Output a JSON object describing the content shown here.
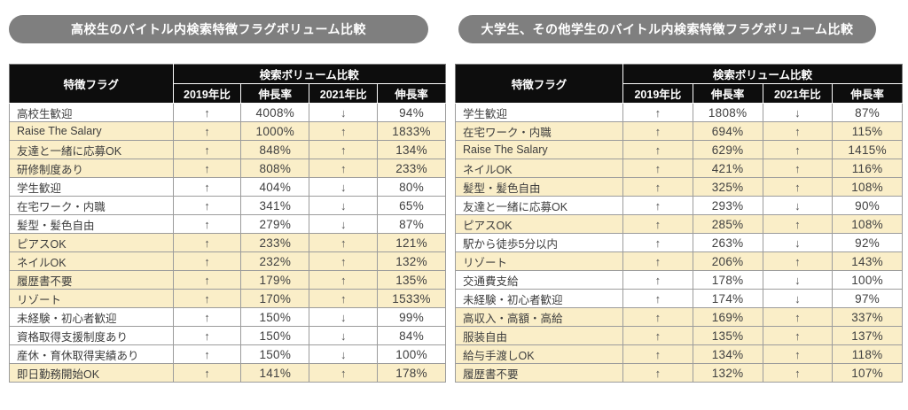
{
  "style": {
    "highlight_color": "#faeec8",
    "pill_color": "#7f7f7f",
    "header_bg": "#0d0d0d",
    "border_color": "#9c9c9c",
    "text_color": "#404040"
  },
  "chart_data": [
    {
      "type": "table",
      "title": "高校生のバイトル内検索特徴フラグボリューム比較",
      "flag_header": "特徴フラグ",
      "group_header": "検索ボリューム比較",
      "sub_headers": [
        "2019年比",
        "伸長率",
        "2021年比",
        "伸長率"
      ],
      "legend_note": "highlight = both comparisons increased",
      "rows": [
        {
          "flag": "高校生歓迎",
          "c2019_arrow": "↑",
          "c2019_growth": "4008%",
          "c2021_arrow": "↓",
          "c2021_growth": "94%",
          "highlight": false
        },
        {
          "flag": "Raise The Salary",
          "c2019_arrow": "↑",
          "c2019_growth": "1000%",
          "c2021_arrow": "↑",
          "c2021_growth": "1833%",
          "highlight": true
        },
        {
          "flag": "友達と一緒に応募OK",
          "c2019_arrow": "↑",
          "c2019_growth": "848%",
          "c2021_arrow": "↑",
          "c2021_growth": "134%",
          "highlight": true
        },
        {
          "flag": "研修制度あり",
          "c2019_arrow": "↑",
          "c2019_growth": "808%",
          "c2021_arrow": "↑",
          "c2021_growth": "233%",
          "highlight": true
        },
        {
          "flag": "学生歓迎",
          "c2019_arrow": "↑",
          "c2019_growth": "404%",
          "c2021_arrow": "↓",
          "c2021_growth": "80%",
          "highlight": false
        },
        {
          "flag": "在宅ワーク・内職",
          "c2019_arrow": "↑",
          "c2019_growth": "341%",
          "c2021_arrow": "↓",
          "c2021_growth": "65%",
          "highlight": false
        },
        {
          "flag": "髪型・髪色自由",
          "c2019_arrow": "↑",
          "c2019_growth": "279%",
          "c2021_arrow": "↓",
          "c2021_growth": "87%",
          "highlight": false
        },
        {
          "flag": "ピアスOK",
          "c2019_arrow": "↑",
          "c2019_growth": "233%",
          "c2021_arrow": "↑",
          "c2021_growth": "121%",
          "highlight": true
        },
        {
          "flag": "ネイルOK",
          "c2019_arrow": "↑",
          "c2019_growth": "232%",
          "c2021_arrow": "↑",
          "c2021_growth": "132%",
          "highlight": true
        },
        {
          "flag": "履歴書不要",
          "c2019_arrow": "↑",
          "c2019_growth": "179%",
          "c2021_arrow": "↑",
          "c2021_growth": "135%",
          "highlight": true
        },
        {
          "flag": "リゾート",
          "c2019_arrow": "↑",
          "c2019_growth": "170%",
          "c2021_arrow": "↑",
          "c2021_growth": "1533%",
          "highlight": true
        },
        {
          "flag": "未経験・初心者歓迎",
          "c2019_arrow": "↑",
          "c2019_growth": "150%",
          "c2021_arrow": "↓",
          "c2021_growth": "99%",
          "highlight": false
        },
        {
          "flag": "資格取得支援制度あり",
          "c2019_arrow": "↑",
          "c2019_growth": "150%",
          "c2021_arrow": "↓",
          "c2021_growth": "84%",
          "highlight": false
        },
        {
          "flag": "産休・育休取得実績あり",
          "c2019_arrow": "↑",
          "c2019_growth": "150%",
          "c2021_arrow": "↓",
          "c2021_growth": "100%",
          "highlight": false
        },
        {
          "flag": "即日勤務開始OK",
          "c2019_arrow": "↑",
          "c2019_growth": "141%",
          "c2021_arrow": "↑",
          "c2021_growth": "178%",
          "highlight": true
        }
      ]
    },
    {
      "type": "table",
      "title": "大学生、その他学生のバイトル内検索特徴フラグボリューム比較",
      "flag_header": "特徴フラグ",
      "group_header": "検索ボリューム比較",
      "sub_headers": [
        "2019年比",
        "伸長率",
        "2021年比",
        "伸長率"
      ],
      "legend_note": "highlight = both comparisons increased",
      "rows": [
        {
          "flag": "学生歓迎",
          "c2019_arrow": "↑",
          "c2019_growth": "1808%",
          "c2021_arrow": "↓",
          "c2021_growth": "87%",
          "highlight": false
        },
        {
          "flag": "在宅ワーク・内職",
          "c2019_arrow": "↑",
          "c2019_growth": "694%",
          "c2021_arrow": "↑",
          "c2021_growth": "115%",
          "highlight": true
        },
        {
          "flag": "Raise The Salary",
          "c2019_arrow": "↑",
          "c2019_growth": "629%",
          "c2021_arrow": "↑",
          "c2021_growth": "1415%",
          "highlight": true
        },
        {
          "flag": "ネイルOK",
          "c2019_arrow": "↑",
          "c2019_growth": "421%",
          "c2021_arrow": "↑",
          "c2021_growth": "116%",
          "highlight": true
        },
        {
          "flag": "髪型・髪色自由",
          "c2019_arrow": "↑",
          "c2019_growth": "325%",
          "c2021_arrow": "↑",
          "c2021_growth": "108%",
          "highlight": true
        },
        {
          "flag": "友達と一緒に応募OK",
          "c2019_arrow": "↑",
          "c2019_growth": "293%",
          "c2021_arrow": "↓",
          "c2021_growth": "90%",
          "highlight": false
        },
        {
          "flag": "ピアスOK",
          "c2019_arrow": "↑",
          "c2019_growth": "285%",
          "c2021_arrow": "↑",
          "c2021_growth": "108%",
          "highlight": true
        },
        {
          "flag": "駅から徒歩5分以内",
          "c2019_arrow": "↑",
          "c2019_growth": "263%",
          "c2021_arrow": "↓",
          "c2021_growth": "92%",
          "highlight": false
        },
        {
          "flag": "リゾート",
          "c2019_arrow": "↑",
          "c2019_growth": "206%",
          "c2021_arrow": "↑",
          "c2021_growth": "143%",
          "highlight": true
        },
        {
          "flag": "交通費支給",
          "c2019_arrow": "↑",
          "c2019_growth": "178%",
          "c2021_arrow": "↓",
          "c2021_growth": "100%",
          "highlight": false
        },
        {
          "flag": "未経験・初心者歓迎",
          "c2019_arrow": "↑",
          "c2019_growth": "174%",
          "c2021_arrow": "↓",
          "c2021_growth": "97%",
          "highlight": false
        },
        {
          "flag": "高収入・高額・高給",
          "c2019_arrow": "↑",
          "c2019_growth": "169%",
          "c2021_arrow": "↑",
          "c2021_growth": "337%",
          "highlight": true
        },
        {
          "flag": "服装自由",
          "c2019_arrow": "↑",
          "c2019_growth": "135%",
          "c2021_arrow": "↑",
          "c2021_growth": "137%",
          "highlight": true
        },
        {
          "flag": "給与手渡しOK",
          "c2019_arrow": "↑",
          "c2019_growth": "134%",
          "c2021_arrow": "↑",
          "c2021_growth": "118%",
          "highlight": true
        },
        {
          "flag": "履歴書不要",
          "c2019_arrow": "↑",
          "c2019_growth": "132%",
          "c2021_arrow": "↑",
          "c2021_growth": "107%",
          "highlight": true
        }
      ]
    }
  ]
}
